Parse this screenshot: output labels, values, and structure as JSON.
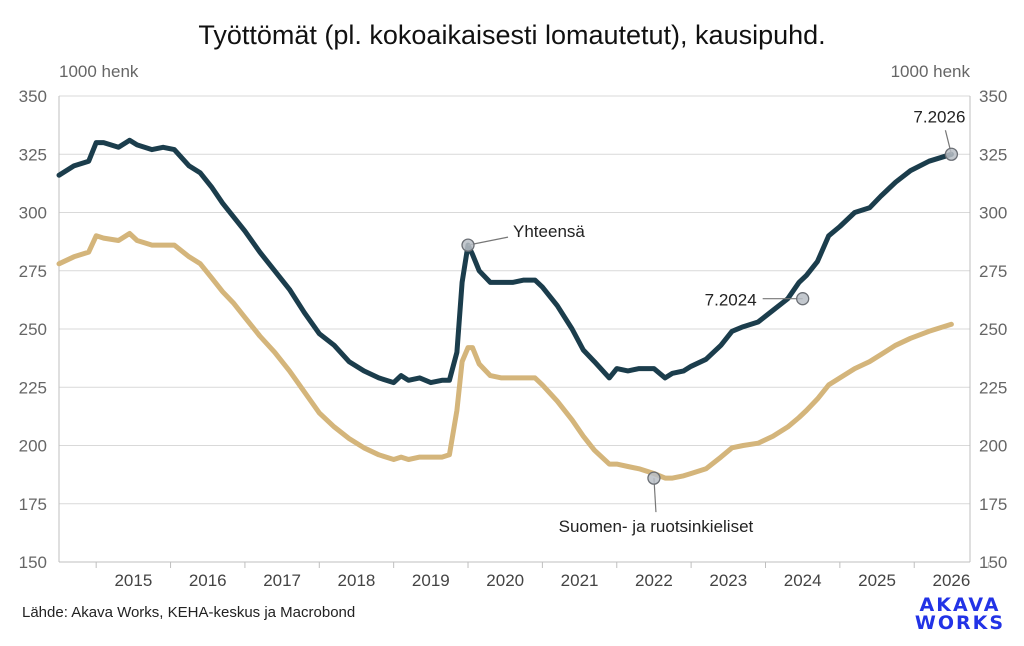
{
  "chart_data": {
    "type": "line",
    "title": "Työttömät (pl. kokoaikaisesti lomautetut), kausipuhd.",
    "y_unit_left": "1000 henk",
    "y_unit_right": "1000 henk",
    "ylim": [
      150,
      350
    ],
    "yticks": [
      150,
      175,
      200,
      225,
      250,
      275,
      300,
      325,
      350
    ],
    "xlim": [
      2014.5,
      2026.75
    ],
    "xticks": [
      "2015",
      "2016",
      "2017",
      "2018",
      "2019",
      "2020",
      "2021",
      "2022",
      "2023",
      "2024",
      "2025",
      "2026"
    ],
    "grid": true,
    "colors": {
      "total": "#1b3d4c",
      "finnish_swedish": "#d4b57b",
      "marker": "#b8bec6"
    },
    "series": [
      {
        "key": "total",
        "x": [
          2014.5,
          2014.7,
          2014.9,
          2015.0,
          2015.1,
          2015.3,
          2015.45,
          2015.55,
          2015.75,
          2015.9,
          2016.05,
          2016.25,
          2016.4,
          2016.55,
          2016.7,
          2016.85,
          2017.0,
          2017.2,
          2017.4,
          2017.6,
          2017.8,
          2018.0,
          2018.2,
          2018.4,
          2018.6,
          2018.8,
          2019.0,
          2019.1,
          2019.2,
          2019.35,
          2019.5,
          2019.65,
          2019.75,
          2019.85,
          2019.92,
          2020.0,
          2020.06,
          2020.15,
          2020.3,
          2020.45,
          2020.6,
          2020.75,
          2020.9,
          2021.0,
          2021.2,
          2021.4,
          2021.55,
          2021.7,
          2021.9,
          2022.0,
          2022.15,
          2022.3,
          2022.5,
          2022.65,
          2022.75,
          2022.9,
          2023.0,
          2023.2,
          2023.4,
          2023.55,
          2023.7,
          2023.9,
          2024.1,
          2024.3,
          2024.45,
          2024.55,
          2024.7,
          2024.85,
          2025.0,
          2025.2,
          2025.4,
          2025.55,
          2025.75,
          2025.95,
          2026.2,
          2026.5
        ],
        "values": [
          316,
          320,
          322,
          330,
          330,
          328,
          331,
          329,
          327,
          328,
          327,
          320,
          317,
          311,
          304,
          298,
          292,
          283,
          275,
          267,
          257,
          248,
          243,
          236,
          232,
          229,
          227,
          230,
          228,
          229,
          227,
          228,
          228,
          240,
          270,
          286,
          282,
          275,
          270,
          270,
          270,
          271,
          271,
          268,
          260,
          250,
          241,
          236,
          229,
          233,
          232,
          233,
          233,
          229,
          231,
          232,
          234,
          237,
          243,
          249,
          251,
          253,
          258,
          263,
          270,
          273,
          279,
          290,
          294,
          300,
          302,
          307,
          313,
          318,
          322,
          325
        ]
      },
      {
        "key": "finnish_swedish",
        "x": [
          2014.5,
          2014.7,
          2014.9,
          2015.0,
          2015.1,
          2015.3,
          2015.45,
          2015.55,
          2015.75,
          2015.9,
          2016.05,
          2016.25,
          2016.4,
          2016.55,
          2016.7,
          2016.85,
          2017.0,
          2017.2,
          2017.4,
          2017.6,
          2017.8,
          2018.0,
          2018.2,
          2018.4,
          2018.6,
          2018.8,
          2019.0,
          2019.1,
          2019.2,
          2019.35,
          2019.5,
          2019.65,
          2019.75,
          2019.85,
          2019.92,
          2020.0,
          2020.06,
          2020.15,
          2020.3,
          2020.45,
          2020.6,
          2020.75,
          2020.9,
          2021.0,
          2021.2,
          2021.4,
          2021.55,
          2021.7,
          2021.9,
          2022.0,
          2022.15,
          2022.3,
          2022.5,
          2022.65,
          2022.75,
          2022.9,
          2023.0,
          2023.2,
          2023.4,
          2023.55,
          2023.7,
          2023.9,
          2024.1,
          2024.3,
          2024.45,
          2024.55,
          2024.7,
          2024.85,
          2025.0,
          2025.2,
          2025.4,
          2025.55,
          2025.75,
          2025.95,
          2026.2,
          2026.5
        ],
        "values": [
          278,
          281,
          283,
          290,
          289,
          288,
          291,
          288,
          286,
          286,
          286,
          281,
          278,
          272,
          266,
          261,
          255,
          247,
          240,
          232,
          223,
          214,
          208,
          203,
          199,
          196,
          194,
          195,
          194,
          195,
          195,
          195,
          196,
          215,
          236,
          242,
          242,
          235,
          230,
          229,
          229,
          229,
          229,
          226,
          219,
          211,
          204,
          198,
          192,
          192,
          191,
          190,
          188,
          186,
          186,
          187,
          188,
          190,
          195,
          199,
          200,
          201,
          204,
          208,
          212,
          215,
          220,
          226,
          229,
          233,
          236,
          239,
          243,
          246,
          249,
          252
        ]
      }
    ],
    "annotations": [
      {
        "label": "Yhteensä",
        "x": 2020.0,
        "y": 286
      },
      {
        "label": "7.2024",
        "x": 2024.5,
        "y": 263
      },
      {
        "label": "7.2026",
        "x": 2026.5,
        "y": 325
      },
      {
        "label": "Suomen- ja ruotsinkieliset",
        "x": 2022.5,
        "y": 186
      }
    ]
  },
  "footer": {
    "source": "Lähde: Akava Works, KEHA-keskus ja Macrobond",
    "logo_line1": "AKAVA",
    "logo_line2": "WORKS"
  }
}
